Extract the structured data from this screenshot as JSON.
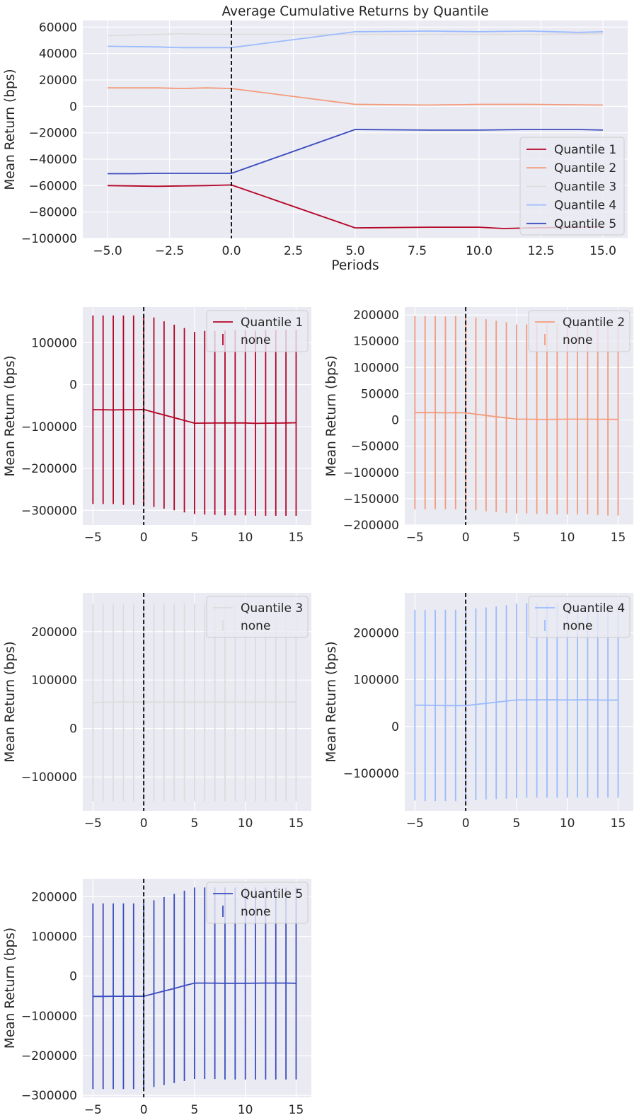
{
  "colors": {
    "background": "#eaeaf2",
    "grid": "#ffffff",
    "q1": "#b40426",
    "q2": "#f49a7b",
    "q3": "#dddcdc",
    "q4": "#9abbff",
    "q5": "#3b4cc0",
    "vline": "#000000"
  },
  "chart_data": [
    {
      "type": "line",
      "title": "Average Cumulative Returns by Quantile",
      "xlabel": "Periods",
      "ylabel": "Mean Return (bps)",
      "xlim": [
        -6,
        16
      ],
      "ylim": [
        -100000,
        65000
      ],
      "xticks": [
        -5.0,
        -2.5,
        0.0,
        2.5,
        5.0,
        7.5,
        10.0,
        12.5,
        15.0
      ],
      "xtick_labels": [
        "−5.0",
        "−2.5",
        "0.0",
        "2.5",
        "5.0",
        "7.5",
        "10.0",
        "12.5",
        "15.0"
      ],
      "yticks": [
        -100000,
        -80000,
        -60000,
        -40000,
        -20000,
        0,
        20000,
        40000,
        60000
      ],
      "ytick_labels": [
        "−100000",
        "−80000",
        "−60000",
        "−40000",
        "−20000",
        "0",
        "20000",
        "40000",
        "60000"
      ],
      "vline_x": 0,
      "legend_position": "lower-right",
      "series": [
        {
          "name": "Quantile 1",
          "x": [
            -5,
            -3,
            -1,
            0,
            5,
            8,
            10,
            11,
            12,
            14,
            15
          ],
          "values": [
            -60000,
            -60500,
            -60000,
            -59500,
            -92000,
            -91500,
            -91500,
            -92500,
            -92000,
            -91500,
            -91000
          ]
        },
        {
          "name": "Quantile 2",
          "x": [
            -5,
            -3,
            -2,
            -1,
            0,
            5,
            8,
            10,
            12,
            15
          ],
          "values": [
            14000,
            14000,
            13500,
            14000,
            13500,
            1500,
            1000,
            1500,
            1500,
            1000
          ]
        },
        {
          "name": "Quantile 3",
          "x": [
            -5,
            -3,
            -2,
            -1,
            0,
            5,
            8,
            10,
            12,
            15
          ],
          "values": [
            53500,
            54500,
            55000,
            54500,
            54500,
            54500,
            54500,
            54500,
            54500,
            55000
          ]
        },
        {
          "name": "Quantile 4",
          "x": [
            -5,
            -3,
            -2,
            -1,
            0,
            5,
            8,
            10,
            12,
            14,
            15
          ],
          "values": [
            45500,
            45000,
            44500,
            44500,
            44500,
            56500,
            57000,
            56500,
            57000,
            56000,
            56500
          ]
        },
        {
          "name": "Quantile 5",
          "x": [
            -5,
            -4,
            -3,
            -2,
            -1,
            0,
            5,
            8,
            10,
            12,
            14,
            15
          ],
          "values": [
            -51000,
            -51000,
            -50700,
            -50700,
            -50700,
            -50700,
            -17500,
            -18000,
            -18000,
            -17500,
            -17500,
            -18000
          ]
        }
      ]
    },
    {
      "type": "line",
      "ylabel": "Mean Return (bps)",
      "xlim": [
        -6,
        16.5
      ],
      "ylim": [
        -335000,
        185000
      ],
      "xticks": [
        -5,
        0,
        5,
        10,
        15
      ],
      "xtick_labels": [
        "−5",
        "0",
        "5",
        "10",
        "15"
      ],
      "yticks": [
        -300000,
        -200000,
        -100000,
        0,
        100000
      ],
      "ytick_labels": [
        "−300000",
        "−200000",
        "−100000",
        "0",
        "100000"
      ],
      "vline_x": 0,
      "legend_position": "top-right",
      "legend": [
        "Quantile 1",
        "none"
      ],
      "series": [
        {
          "name": "Quantile 1",
          "x": [
            -5,
            -4,
            -3,
            -2,
            -1,
            0,
            1,
            2,
            3,
            4,
            5,
            6,
            7,
            8,
            9,
            10,
            11,
            12,
            13,
            14,
            15
          ],
          "values": [
            -60000,
            -60000,
            -60500,
            -60000,
            -60000,
            -59500,
            -66000,
            -72500,
            -79000,
            -85500,
            -92000,
            -91800,
            -91700,
            -91500,
            -91500,
            -91500,
            -92500,
            -92000,
            -91800,
            -91500,
            -91000
          ]
        }
      ],
      "error_bars": {
        "lower": [
          -285000,
          -285000,
          -285000,
          -287000,
          -287000,
          -288000,
          -292000,
          -296000,
          -300000,
          -305000,
          -309000,
          -310000,
          -311000,
          -312000,
          -312000,
          -312000,
          -313000,
          -313000,
          -313000,
          -313000,
          -313000
        ],
        "upper": [
          165000,
          165000,
          165000,
          165000,
          165000,
          165000,
          160000,
          151000,
          143000,
          135000,
          126000,
          128000,
          128000,
          129000,
          130000,
          130000,
          129000,
          130000,
          130000,
          131000,
          131000
        ]
      }
    },
    {
      "type": "line",
      "ylabel": "Mean Return (bps)",
      "xlim": [
        -6,
        16.5
      ],
      "ylim": [
        -200000,
        215000
      ],
      "xticks": [
        -5,
        0,
        5,
        10,
        15
      ],
      "xtick_labels": [
        "−5",
        "0",
        "5",
        "10",
        "15"
      ],
      "yticks": [
        -200000,
        -150000,
        -100000,
        -50000,
        0,
        50000,
        100000,
        150000,
        200000
      ],
      "ytick_labels": [
        "−200000",
        "−150000",
        "−100000",
        "−50000",
        "0",
        "50000",
        "100000",
        "150000",
        "200000"
      ],
      "vline_x": 0,
      "legend_position": "top-right",
      "legend": [
        "Quantile 2",
        "none"
      ],
      "series": [
        {
          "name": "Quantile 2",
          "x": [
            -5,
            -4,
            -3,
            -2,
            -1,
            0,
            1,
            2,
            3,
            4,
            5,
            6,
            7,
            8,
            9,
            10,
            11,
            12,
            13,
            14,
            15
          ],
          "values": [
            14000,
            14000,
            14000,
            13500,
            14000,
            13500,
            11000,
            8600,
            6200,
            3800,
            1500,
            1400,
            1200,
            1000,
            1200,
            1500,
            1500,
            1500,
            1300,
            1100,
            1000
          ]
        }
      ],
      "error_bars": {
        "lower": [
          -170000,
          -170000,
          -170000,
          -170000,
          -170000,
          -170000,
          -172000,
          -174000,
          -175000,
          -177000,
          -178000,
          -178000,
          -179000,
          -179000,
          -180000,
          -180000,
          -180000,
          -180000,
          -181000,
          -182000,
          -182000
        ],
        "upper": [
          198000,
          198000,
          198000,
          197000,
          198000,
          197000,
          195000,
          192000,
          189000,
          186000,
          182000,
          182000,
          182000,
          182000,
          183000,
          183000,
          183000,
          183000,
          183000,
          183000,
          183000
        ]
      }
    },
    {
      "type": "line",
      "ylabel": "Mean Return (bps)",
      "xlim": [
        -6,
        16.5
      ],
      "ylim": [
        -170000,
        280000
      ],
      "xticks": [
        -5,
        0,
        5,
        10,
        15
      ],
      "xtick_labels": [
        "−5",
        "0",
        "5",
        "10",
        "15"
      ],
      "yticks": [
        -100000,
        0,
        100000,
        200000
      ],
      "ytick_labels": [
        "−100000",
        "0",
        "100000",
        "200000"
      ],
      "vline_x": 0,
      "legend_position": "top-right",
      "legend": [
        "Quantile 3",
        "none"
      ],
      "series": [
        {
          "name": "Quantile 3",
          "x": [
            -5,
            -4,
            -3,
            -2,
            -1,
            0,
            1,
            2,
            3,
            4,
            5,
            6,
            7,
            8,
            9,
            10,
            11,
            12,
            13,
            14,
            15
          ],
          "values": [
            53500,
            54000,
            54500,
            55000,
            54500,
            54500,
            54500,
            54500,
            54500,
            54500,
            54500,
            54500,
            54500,
            54500,
            54500,
            54500,
            54500,
            54500,
            54700,
            54800,
            55000
          ]
        }
      ],
      "error_bars": {
        "lower": [
          -150000,
          -150000,
          -150000,
          -150000,
          -150000,
          -150000,
          -150000,
          -150000,
          -150000,
          -150000,
          -150000,
          -150000,
          -150000,
          -150000,
          -150000,
          -150000,
          -150000,
          -150000,
          -150000,
          -150000,
          -150000
        ],
        "upper": [
          258000,
          258000,
          258000,
          258000,
          258000,
          258000,
          258000,
          258000,
          258000,
          258000,
          258000,
          258000,
          258000,
          258000,
          258000,
          258000,
          258000,
          258000,
          258000,
          258000,
          258000
        ]
      }
    },
    {
      "type": "line",
      "ylabel": "Mean Return (bps)",
      "xlim": [
        -6,
        16.5
      ],
      "ylim": [
        -180000,
        285000
      ],
      "xticks": [
        -5,
        0,
        5,
        10,
        15
      ],
      "xtick_labels": [
        "−5",
        "0",
        "5",
        "10",
        "15"
      ],
      "yticks": [
        -100000,
        0,
        100000,
        200000
      ],
      "ytick_labels": [
        "−100000",
        "0",
        "100000",
        "200000"
      ],
      "vline_x": 0,
      "legend_position": "top-right",
      "legend": [
        "Quantile 4",
        "none"
      ],
      "series": [
        {
          "name": "Quantile 4",
          "x": [
            -5,
            -4,
            -3,
            -2,
            -1,
            0,
            1,
            2,
            3,
            4,
            5,
            6,
            7,
            8,
            9,
            10,
            11,
            12,
            13,
            14,
            15
          ],
          "values": [
            45500,
            45300,
            45000,
            44500,
            44500,
            44500,
            46900,
            49300,
            51700,
            54100,
            56500,
            56700,
            56800,
            57000,
            56800,
            56500,
            56700,
            57000,
            56500,
            56000,
            56500
          ]
        }
      ],
      "error_bars": {
        "lower": [
          -158000,
          -159000,
          -159000,
          -159000,
          -159000,
          -159000,
          -157000,
          -156000,
          -155000,
          -154000,
          -153000,
          -152000,
          -152000,
          -152000,
          -152000,
          -152000,
          -152000,
          -152000,
          -152000,
          -152000,
          -152000
        ],
        "upper": [
          249000,
          249000,
          249000,
          249000,
          249000,
          249000,
          252000,
          254000,
          256000,
          259000,
          262000,
          263000,
          263000,
          263000,
          263000,
          263000,
          263000,
          263000,
          263000,
          263000,
          263000
        ]
      }
    },
    {
      "type": "line",
      "ylabel": "Mean Return (bps)",
      "xlim": [
        -6,
        16.5
      ],
      "ylim": [
        -305000,
        245000
      ],
      "xticks": [
        -5,
        0,
        5,
        10,
        15
      ],
      "xtick_labels": [
        "−5",
        "0",
        "5",
        "10",
        "15"
      ],
      "yticks": [
        -300000,
        -200000,
        -100000,
        0,
        100000,
        200000
      ],
      "ytick_labels": [
        "−300000",
        "−200000",
        "−100000",
        "0",
        "100000",
        "200000"
      ],
      "vline_x": 0,
      "legend_position": "top-right",
      "legend": [
        "Quantile 5",
        "none"
      ],
      "series": [
        {
          "name": "Quantile 5",
          "x": [
            -5,
            -4,
            -3,
            -2,
            -1,
            0,
            1,
            2,
            3,
            4,
            5,
            6,
            7,
            8,
            9,
            10,
            11,
            12,
            13,
            14,
            15
          ],
          "values": [
            -51000,
            -51000,
            -50700,
            -50700,
            -50700,
            -50700,
            -44000,
            -37500,
            -31000,
            -24000,
            -17500,
            -17600,
            -17800,
            -18000,
            -18000,
            -18000,
            -17800,
            -17500,
            -17500,
            -17500,
            -18000
          ]
        }
      ],
      "error_bars": {
        "lower": [
          -284000,
          -284000,
          -284000,
          -284000,
          -284000,
          -284000,
          -279000,
          -274000,
          -269000,
          -264000,
          -259000,
          -259000,
          -259000,
          -260000,
          -260000,
          -260000,
          -260000,
          -260000,
          -260000,
          -260000,
          -260000
        ],
        "upper": [
          183000,
          183000,
          183000,
          183000,
          183000,
          183000,
          191000,
          199000,
          207000,
          215000,
          223000,
          223000,
          223000,
          223000,
          223000,
          223000,
          223000,
          223000,
          223000,
          223000,
          223000
        ]
      }
    }
  ]
}
